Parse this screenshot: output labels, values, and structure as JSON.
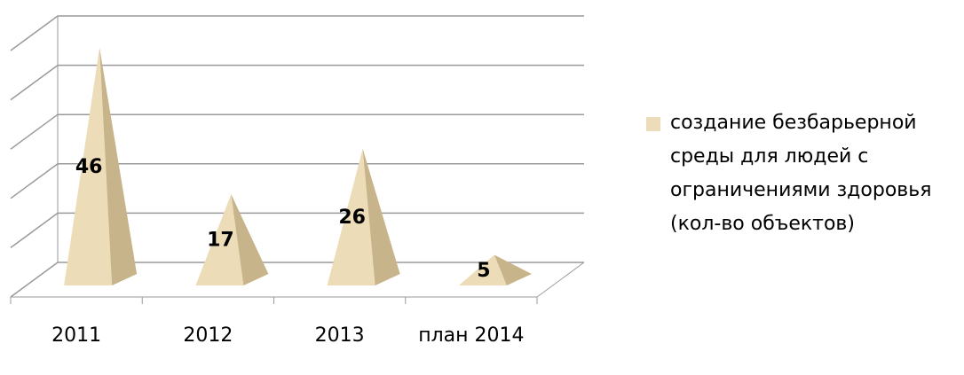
{
  "chart_data": {
    "type": "pyramid3d",
    "categories": [
      "2011",
      "2012",
      "2013",
      "план 2014"
    ],
    "series": [
      {
        "name": "создание безбарьерной среды для людей с ограничениями здоровья (кол-во объектов)",
        "color": "#ecdcb8",
        "values": [
          46,
          17,
          26,
          5
        ]
      }
    ],
    "ylim": [
      0,
      50
    ],
    "yticks": [
      0,
      10,
      20,
      30,
      40,
      50
    ],
    "grid": true,
    "legend": "right"
  }
}
